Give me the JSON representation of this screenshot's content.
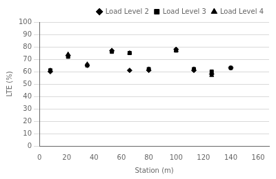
{
  "chart_data": {
    "type": "scatter",
    "xlabel": "Station (m)",
    "ylabel": "LTE (%)",
    "xlim": [
      0,
      168
    ],
    "ylim": [
      0,
      100
    ],
    "xticks": [
      0,
      20,
      40,
      60,
      80,
      100,
      120,
      140,
      160
    ],
    "yticks": [
      0,
      10,
      20,
      30,
      40,
      50,
      60,
      70,
      80,
      90,
      100
    ],
    "grid": "y",
    "legend": "upper right",
    "series": [
      {
        "name": "Load Level 2",
        "color": "black",
        "marker": "diamond",
        "x": [
          8,
          21,
          35,
          53,
          66,
          80,
          100,
          113,
          126,
          140
        ],
        "values": [
          60,
          73,
          65,
          77,
          61,
          61,
          78,
          61,
          58,
          63
        ]
      },
      {
        "name": "Load Level 3",
        "color": "black",
        "marker": "square",
        "x": [
          8,
          21,
          35,
          53,
          66,
          80,
          100,
          113,
          126,
          140
        ],
        "values": [
          61,
          72,
          65,
          76,
          75,
          62,
          77,
          62,
          60,
          63
        ]
      },
      {
        "name": "Load Level 4",
        "color": "black",
        "marker": "triangle",
        "x": [
          8,
          21,
          35,
          53,
          66,
          80,
          100,
          113,
          126
        ],
        "values": [
          61,
          74,
          66,
          77,
          75,
          62,
          77,
          62,
          57
        ]
      }
    ]
  }
}
